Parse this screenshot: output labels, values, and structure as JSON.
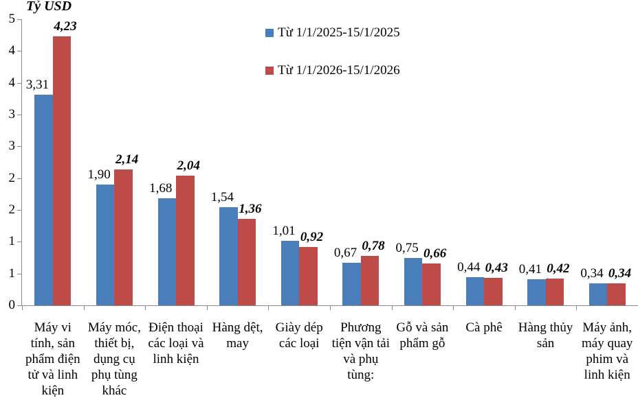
{
  "chart_data": {
    "type": "bar",
    "title": "",
    "ylabel": "Tỷ USD",
    "categories": [
      "Máy vi tính, sản phẩm điện tử và linh kiện",
      "Máy móc, thiết bị, dụng cụ phụ tùng khác",
      "Điện thoại các loại và linh kiện",
      "Hàng dệt, may",
      "Giày dép các loại",
      "Phương tiện vận tải và phụ tùng:",
      "Gỗ và sản phẩm gỗ",
      "Cà phê",
      "Hàng thủy sản",
      "Máy ảnh, máy quay phim và linh kiện"
    ],
    "series": [
      {
        "name": "Từ 1/1/2025-15/1/2025",
        "color": "#4A7EBB",
        "values": [
          3.31,
          1.9,
          1.68,
          1.54,
          1.01,
          0.67,
          0.75,
          0.44,
          0.41,
          0.34
        ],
        "labels": [
          "3,31",
          "1,90",
          "1,68",
          "1,54",
          "1,01",
          "0,67",
          "0,75",
          "0,44",
          "0,41",
          "0,34"
        ]
      },
      {
        "name": "Từ 1/1/2026-15/1/2026",
        "color": "#BE4B48",
        "values": [
          4.23,
          2.14,
          2.04,
          1.36,
          0.92,
          0.78,
          0.66,
          0.43,
          0.42,
          0.34
        ],
        "labels": [
          "4,23",
          "2,14",
          "2,04",
          "1,36",
          "0,92",
          "0,78",
          "0,66",
          "0,43",
          "0,42",
          "0,34"
        ]
      }
    ],
    "axis": {
      "ymin": 0,
      "ymax": 4.5,
      "tick_step": 0.5,
      "tick_labels_bottom_to_top": [
        "0",
        "1",
        "1",
        "2",
        "2",
        "3",
        "3",
        "4",
        "4",
        "5"
      ],
      "grid": false
    },
    "legend_position": "top-center",
    "axis_line_color": "#8a8a8a"
  }
}
